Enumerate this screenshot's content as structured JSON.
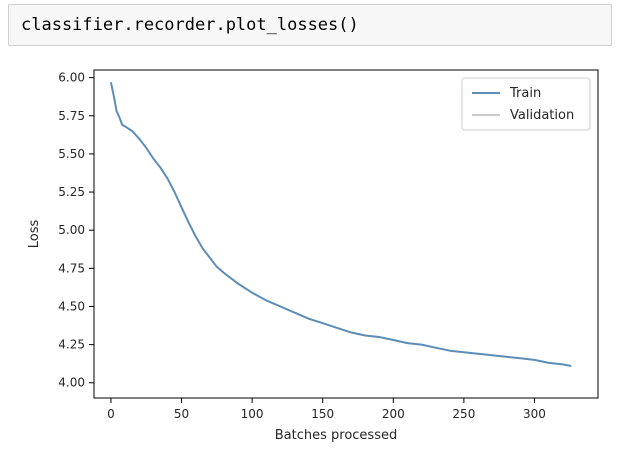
{
  "notebook": {
    "code": "classifier.recorder.plot_losses()"
  },
  "chart_data": {
    "type": "line",
    "title": "",
    "xlabel": "Batches processed",
    "ylabel": "Loss",
    "xlim": [
      -12,
      345
    ],
    "ylim": [
      3.9,
      6.05
    ],
    "xticks": [
      0,
      50,
      100,
      150,
      200,
      250,
      300
    ],
    "yticks": [
      4.0,
      4.25,
      4.5,
      4.75,
      5.0,
      5.25,
      5.5,
      5.75,
      6.0
    ],
    "ytick_labels": [
      "4.00",
      "4.25",
      "4.50",
      "4.75",
      "5.00",
      "5.25",
      "5.50",
      "5.75",
      "6.00"
    ],
    "grid": false,
    "legend_position": "top-right",
    "series": [
      {
        "name": "Train",
        "color": "#5b8db8",
        "x": [
          0,
          2,
          4,
          6,
          8,
          10,
          15,
          20,
          25,
          30,
          35,
          40,
          45,
          50,
          55,
          60,
          65,
          70,
          75,
          80,
          90,
          100,
          110,
          120,
          130,
          140,
          150,
          160,
          170,
          180,
          190,
          200,
          210,
          220,
          230,
          240,
          250,
          260,
          270,
          280,
          290,
          300,
          310,
          320,
          326
        ],
        "y": [
          5.97,
          5.88,
          5.78,
          5.74,
          5.69,
          5.68,
          5.65,
          5.6,
          5.54,
          5.47,
          5.41,
          5.34,
          5.25,
          5.15,
          5.05,
          4.96,
          4.88,
          4.82,
          4.76,
          4.72,
          4.65,
          4.59,
          4.54,
          4.5,
          4.46,
          4.42,
          4.39,
          4.36,
          4.33,
          4.31,
          4.3,
          4.28,
          4.26,
          4.25,
          4.23,
          4.21,
          4.2,
          4.19,
          4.18,
          4.17,
          4.16,
          4.15,
          4.13,
          4.12,
          4.11
        ]
      },
      {
        "name": "Validation",
        "color": "#aaaaaa",
        "x": [],
        "y": []
      }
    ]
  }
}
